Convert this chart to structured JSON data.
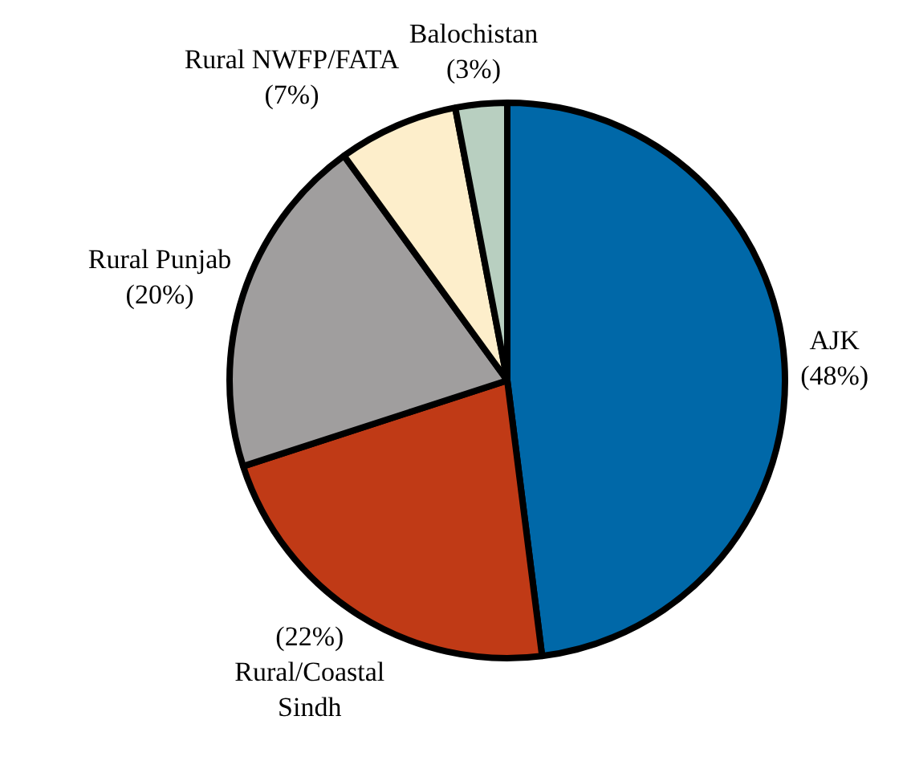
{
  "chart_data": {
    "type": "pie",
    "categories": [
      "AJK",
      "Rural/Coastal Sindh",
      "Rural Punjab",
      "Rural NWFP/FATA",
      "Balochistan"
    ],
    "values": [
      48,
      22,
      20,
      7,
      3
    ],
    "value_labels": [
      "(48%)",
      "(22%)",
      "(20%)",
      "(7%)",
      "(3%)"
    ],
    "colors": [
      "#0068a8",
      "#c03a16",
      "#a09e9e",
      "#fdeecb",
      "#b8cfc0"
    ],
    "legend": false
  }
}
